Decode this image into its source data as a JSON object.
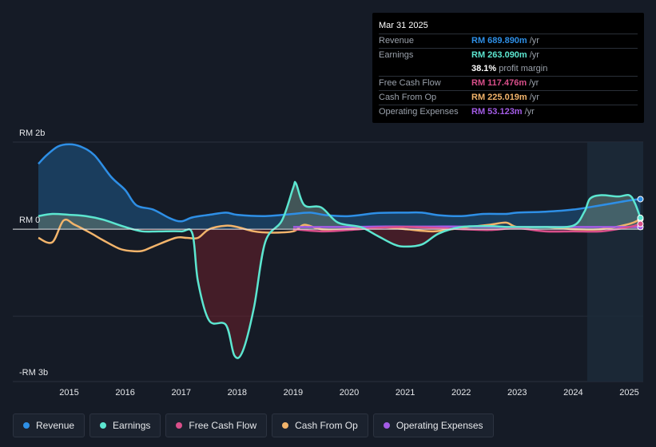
{
  "chart_data": {
    "type": "area",
    "y_axis_labels": {
      "top": "RM 2b",
      "zero": "RM 0",
      "bottom": "-RM 3b"
    },
    "ylim_billions": [
      -3.5,
      2.0
    ],
    "xlim_years": [
      2014.45,
      2025.25
    ],
    "forecast_shade_start": 2024.25,
    "x_ticks": [
      "2015",
      "2016",
      "2017",
      "2018",
      "2019",
      "2020",
      "2021",
      "2022",
      "2023",
      "2024",
      "2025"
    ],
    "x_tick_values": [
      2015,
      2016,
      2017,
      2018,
      2019,
      2020,
      2021,
      2022,
      2023,
      2024,
      2025
    ],
    "series": [
      {
        "name": "Revenue",
        "color": "#2e8fe6",
        "fill": true,
        "x": [
          2014.45,
          2014.6,
          2014.8,
          2015.0,
          2015.2,
          2015.45,
          2015.75,
          2016.0,
          2016.2,
          2016.5,
          2016.8,
          2017.0,
          2017.2,
          2017.5,
          2017.8,
          2018.0,
          2018.5,
          2019.0,
          2019.3,
          2019.6,
          2020.0,
          2020.5,
          2021.0,
          2021.3,
          2021.6,
          2022.0,
          2022.4,
          2022.8,
          2023.0,
          2023.5,
          2024.0,
          2024.5,
          2025.0,
          2025.2
        ],
        "y": [
          1.5,
          1.7,
          1.9,
          1.95,
          1.9,
          1.7,
          1.2,
          0.9,
          0.55,
          0.45,
          0.25,
          0.18,
          0.27,
          0.33,
          0.38,
          0.33,
          0.3,
          0.35,
          0.38,
          0.32,
          0.3,
          0.37,
          0.38,
          0.38,
          0.32,
          0.3,
          0.35,
          0.35,
          0.38,
          0.4,
          0.45,
          0.55,
          0.66,
          0.69
        ]
      },
      {
        "name": "Earnings",
        "color": "#5ce6d0",
        "fill": true,
        "x": [
          2014.45,
          2014.7,
          2015.0,
          2015.3,
          2015.6,
          2016.0,
          2016.3,
          2016.6,
          2017.0,
          2017.2,
          2017.3,
          2017.5,
          2017.8,
          2017.95,
          2018.1,
          2018.3,
          2018.5,
          2018.8,
          2019.0,
          2019.05,
          2019.2,
          2019.5,
          2019.8,
          2020.2,
          2020.5,
          2020.8,
          2021.0,
          2021.3,
          2021.6,
          2022.0,
          2022.5,
          2022.8,
          2023.0,
          2023.5,
          2024.0,
          2024.2,
          2024.3,
          2024.5,
          2024.8,
          2025.0,
          2025.1,
          2025.2
        ],
        "y": [
          0.3,
          0.35,
          0.33,
          0.3,
          0.22,
          0.05,
          -0.05,
          -0.05,
          -0.05,
          -0.1,
          -1.2,
          -2.1,
          -2.2,
          -2.9,
          -2.8,
          -1.8,
          -0.3,
          0.2,
          0.95,
          1.05,
          0.55,
          0.5,
          0.15,
          0.05,
          -0.15,
          -0.35,
          -0.4,
          -0.35,
          -0.1,
          0.05,
          0.07,
          0.05,
          0.05,
          0.05,
          0.08,
          0.4,
          0.7,
          0.78,
          0.75,
          0.78,
          0.6,
          0.26
        ]
      },
      {
        "name": "Free Cash Flow",
        "color": "#d94f8a",
        "fill": true,
        "x": [
          2019.0,
          2019.5,
          2020.0,
          2020.5,
          2021.0,
          2021.5,
          2022.0,
          2022.5,
          2023.0,
          2023.5,
          2024.0,
          2024.5,
          2025.0,
          2025.2
        ],
        "y": [
          0.0,
          -0.05,
          -0.02,
          0.03,
          0.05,
          0.03,
          0.0,
          -0.02,
          0.02,
          -0.05,
          -0.05,
          -0.05,
          0.05,
          0.12
        ]
      },
      {
        "name": "Cash From Op",
        "color": "#f2b46b",
        "fill": false,
        "x": [
          2014.45,
          2014.7,
          2014.9,
          2015.1,
          2015.4,
          2015.6,
          2015.9,
          2016.1,
          2016.3,
          2016.5,
          2016.9,
          2017.1,
          2017.3,
          2017.5,
          2017.8,
          2018.0,
          2018.3,
          2018.6,
          2019.0,
          2019.2,
          2019.5,
          2020.0,
          2020.5,
          2021.0,
          2021.5,
          2022.0,
          2022.5,
          2022.8,
          2023.0,
          2023.5,
          2024.0,
          2024.5,
          2025.0,
          2025.2
        ],
        "y": [
          -0.2,
          -0.3,
          0.2,
          0.1,
          -0.1,
          -0.25,
          -0.45,
          -0.5,
          -0.5,
          -0.4,
          -0.2,
          -0.2,
          -0.2,
          0.0,
          0.08,
          0.05,
          -0.05,
          -0.08,
          -0.05,
          0.1,
          0.0,
          0.0,
          0.05,
          0.0,
          -0.05,
          0.03,
          0.1,
          0.15,
          0.05,
          0.05,
          0.0,
          0.0,
          0.12,
          0.23
        ]
      },
      {
        "name": "Operating Expenses",
        "color": "#a35ce6",
        "fill": false,
        "x": [
          2019.0,
          2019.5,
          2020.0,
          2020.5,
          2021.0,
          2021.5,
          2022.0,
          2022.5,
          2023.0,
          2023.5,
          2024.0,
          2024.5,
          2025.0,
          2025.2
        ],
        "y": [
          0.05,
          0.05,
          0.05,
          0.06,
          0.06,
          0.06,
          0.06,
          0.05,
          0.05,
          0.05,
          0.05,
          0.05,
          0.05,
          0.05
        ]
      }
    ]
  },
  "tooltip": {
    "date": "Mar 31 2025",
    "rows": [
      {
        "label": "Revenue",
        "value": "RM 689.890m",
        "unit": "/yr",
        "color": "#2e8fe6"
      },
      {
        "label": "Earnings",
        "value": "RM 263.090m",
        "unit": "/yr",
        "color": "#5ce6d0"
      },
      {
        "label": "",
        "value": "38.1%",
        "unit": "profit margin",
        "color": "#ffffff"
      },
      {
        "label": "Free Cash Flow",
        "value": "RM 117.476m",
        "unit": "/yr",
        "color": "#d94f8a"
      },
      {
        "label": "Cash From Op",
        "value": "RM 225.019m",
        "unit": "/yr",
        "color": "#f2b46b"
      },
      {
        "label": "Operating Expenses",
        "value": "RM 53.123m",
        "unit": "/yr",
        "color": "#a35ce6"
      }
    ]
  },
  "legend": [
    {
      "label": "Revenue",
      "color": "#2e8fe6"
    },
    {
      "label": "Earnings",
      "color": "#5ce6d0"
    },
    {
      "label": "Free Cash Flow",
      "color": "#d94f8a"
    },
    {
      "label": "Cash From Op",
      "color": "#f2b46b"
    },
    {
      "label": "Operating Expenses",
      "color": "#a35ce6"
    }
  ]
}
